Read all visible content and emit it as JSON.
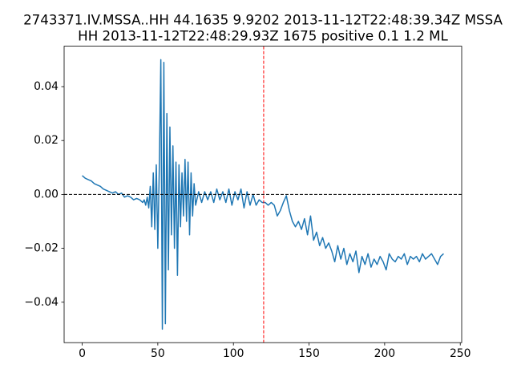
{
  "chart_data": {
    "type": "line",
    "title": [
      "2743371.IV.MSSA..HH 44.1635 9.9202 2013-11-12T22:48:39.34Z MSSA",
      "HH 2013-11-12T22:48:29.93Z 1675 positive 0.1 1.2 ML"
    ],
    "x": [
      0,
      2,
      4,
      6,
      8,
      10,
      12,
      14,
      16,
      18,
      20,
      22,
      24,
      26,
      28,
      30,
      32,
      34,
      36,
      38,
      40,
      41,
      42,
      43,
      44,
      45,
      46,
      47,
      48,
      49,
      50,
      51,
      52,
      53,
      54,
      55,
      56,
      57,
      58,
      59,
      60,
      61,
      62,
      63,
      64,
      65,
      66,
      67,
      68,
      69,
      70,
      71,
      72,
      73,
      74,
      75,
      77,
      79,
      81,
      83,
      85,
      87,
      89,
      91,
      93,
      95,
      97,
      99,
      101,
      103,
      105,
      107,
      109,
      111,
      113,
      115,
      117,
      119,
      121,
      123,
      125,
      127,
      129,
      131,
      133,
      135,
      137,
      139,
      141,
      143,
      145,
      147,
      149,
      151,
      153,
      155,
      157,
      159,
      161,
      163,
      165,
      167,
      169,
      171,
      173,
      175,
      177,
      179,
      181,
      183,
      185,
      187,
      189,
      191,
      193,
      195,
      197,
      199,
      201,
      203,
      205,
      207,
      209,
      211,
      213,
      215,
      217,
      219,
      221,
      223,
      225,
      227,
      229,
      231,
      233,
      235,
      237,
      239
    ],
    "values": [
      0.007,
      0.006,
      0.0055,
      0.005,
      0.004,
      0.0035,
      0.003,
      0.002,
      0.0015,
      0.001,
      0.0005,
      0.001,
      0.0,
      0.0005,
      -0.001,
      -0.0005,
      -0.001,
      -0.002,
      -0.0015,
      -0.002,
      -0.003,
      -0.002,
      -0.004,
      -0.001,
      -0.005,
      0.003,
      -0.012,
      0.008,
      -0.013,
      0.011,
      -0.02,
      0.01,
      0.05,
      -0.05,
      0.049,
      -0.048,
      0.03,
      -0.028,
      0.025,
      -0.015,
      0.018,
      -0.02,
      0.012,
      -0.03,
      0.011,
      -0.012,
      0.008,
      -0.008,
      0.013,
      -0.01,
      0.012,
      -0.015,
      0.008,
      -0.008,
      0.004,
      -0.004,
      0.001,
      -0.003,
      0.001,
      -0.002,
      0.001,
      -0.003,
      0.002,
      -0.002,
      0.001,
      -0.003,
      0.002,
      -0.004,
      0.001,
      -0.002,
      0.002,
      -0.005,
      0.001,
      -0.004,
      0.0,
      -0.004,
      -0.002,
      -0.003,
      -0.003,
      -0.004,
      -0.003,
      -0.004,
      -0.008,
      -0.006,
      -0.003,
      -0.0005,
      -0.006,
      -0.01,
      -0.012,
      -0.01,
      -0.013,
      -0.009,
      -0.015,
      -0.008,
      -0.017,
      -0.014,
      -0.019,
      -0.016,
      -0.02,
      -0.018,
      -0.021,
      -0.025,
      -0.019,
      -0.024,
      -0.02,
      -0.026,
      -0.022,
      -0.025,
      -0.021,
      -0.029,
      -0.023,
      -0.026,
      -0.022,
      -0.027,
      -0.024,
      -0.026,
      -0.023,
      -0.025,
      -0.028,
      -0.022,
      -0.024,
      -0.025,
      -0.023,
      -0.024,
      -0.022,
      -0.026,
      -0.023,
      -0.024,
      -0.023,
      -0.025,
      -0.022,
      -0.024,
      -0.023,
      -0.022,
      -0.024,
      -0.026,
      -0.023,
      -0.022
    ],
    "color": "#1f77b4",
    "xlim": [
      -11.95,
      250.95
    ],
    "xticks": [
      0,
      50,
      100,
      150,
      200,
      250
    ],
    "ylim": [
      -0.055,
      0.055
    ],
    "yticks": [
      {
        "value": -0.04,
        "label": "−0.04"
      },
      {
        "value": -0.02,
        "label": "−0.02"
      },
      {
        "value": 0,
        "label": "0.00"
      },
      0.02,
      0.04
    ],
    "hline": {
      "value": 0,
      "color": "#000000"
    },
    "vline": {
      "value": 120,
      "color": "#ff0000"
    }
  }
}
